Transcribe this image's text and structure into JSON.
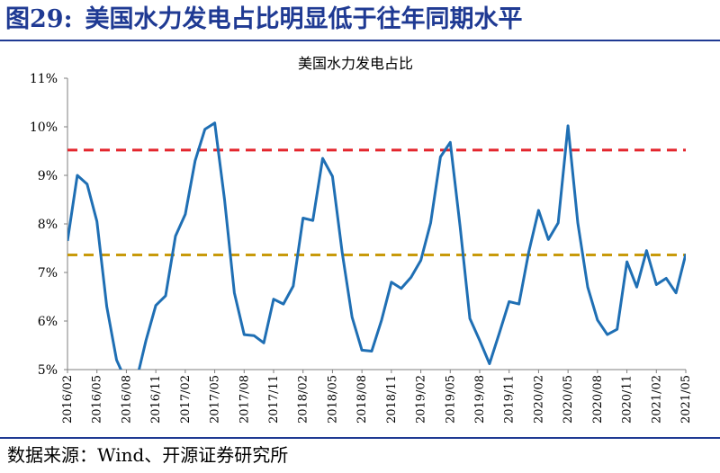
{
  "figure": {
    "number": "图29:",
    "title": "美国水力发电占比明显低于往年同期水平",
    "source": "数据来源：Wind、开源证券研究所"
  },
  "chart_data": {
    "type": "line",
    "title": "美国水力发电占比",
    "xlabel": "",
    "ylabel": "",
    "ylim": [
      5,
      11
    ],
    "ytick_values": [
      5,
      6,
      7,
      8,
      9,
      10,
      11
    ],
    "ytick_labels": [
      "5%",
      "6%",
      "7%",
      "8%",
      "9%",
      "10%",
      "11%"
    ],
    "x": [
      "2016/02",
      "2016/03",
      "2016/04",
      "2016/05",
      "2016/06",
      "2016/07",
      "2016/08",
      "2016/09",
      "2016/10",
      "2016/11",
      "2016/12",
      "2017/01",
      "2017/02",
      "2017/03",
      "2017/04",
      "2017/05",
      "2017/06",
      "2017/07",
      "2017/08",
      "2017/09",
      "2017/10",
      "2017/11",
      "2017/12",
      "2018/01",
      "2018/02",
      "2018/03",
      "2018/04",
      "2018/05",
      "2018/06",
      "2018/07",
      "2018/08",
      "2018/09",
      "2018/10",
      "2018/11",
      "2018/12",
      "2019/01",
      "2019/02",
      "2019/03",
      "2019/04",
      "2019/05",
      "2019/06",
      "2019/07",
      "2019/08",
      "2019/09",
      "2019/10",
      "2019/11",
      "2019/12",
      "2020/01",
      "2020/02",
      "2020/03",
      "2020/04",
      "2020/05",
      "2020/06",
      "2020/07",
      "2020/08",
      "2020/09",
      "2020/10",
      "2020/11",
      "2020/12",
      "2021/01",
      "2021/02",
      "2021/03",
      "2021/04",
      "2021/05"
    ],
    "xtick_labels": [
      "2016/02",
      "2016/05",
      "2016/08",
      "2016/11",
      "2017/02",
      "2017/05",
      "2017/08",
      "2017/11",
      "2018/02",
      "2018/05",
      "2018/08",
      "2018/11",
      "2019/02",
      "2019/05",
      "2019/08",
      "2019/11",
      "2020/02",
      "2020/05",
      "2020/08",
      "2020/11",
      "2021/02",
      "2021/05"
    ],
    "series": [
      {
        "color": "#1f6fb4",
        "values": [
          7.65,
          9.0,
          8.82,
          8.05,
          6.3,
          5.2,
          4.75,
          4.75,
          5.6,
          6.32,
          6.52,
          7.75,
          8.2,
          9.3,
          9.95,
          10.08,
          8.5,
          6.58,
          5.72,
          5.7,
          5.55,
          6.45,
          6.35,
          6.72,
          8.12,
          8.07,
          9.35,
          8.98,
          7.4,
          6.08,
          5.4,
          5.38,
          6.02,
          6.8,
          6.67,
          6.9,
          7.25,
          8.02,
          9.38,
          9.68,
          7.95,
          6.05,
          5.6,
          5.12,
          5.75,
          6.4,
          6.35,
          7.42,
          8.28,
          7.68,
          8.02,
          10.02,
          8.02,
          6.7,
          6.02,
          5.72,
          5.83,
          7.22,
          6.7,
          7.45,
          6.75,
          6.88,
          6.58,
          7.38
        ]
      }
    ],
    "reference_lines": [
      {
        "value": 9.52,
        "color": "#e3262d",
        "style": "dashed"
      },
      {
        "value": 7.36,
        "color": "#c89a0b",
        "style": "dashed"
      }
    ],
    "grid": false,
    "legend": "none"
  }
}
